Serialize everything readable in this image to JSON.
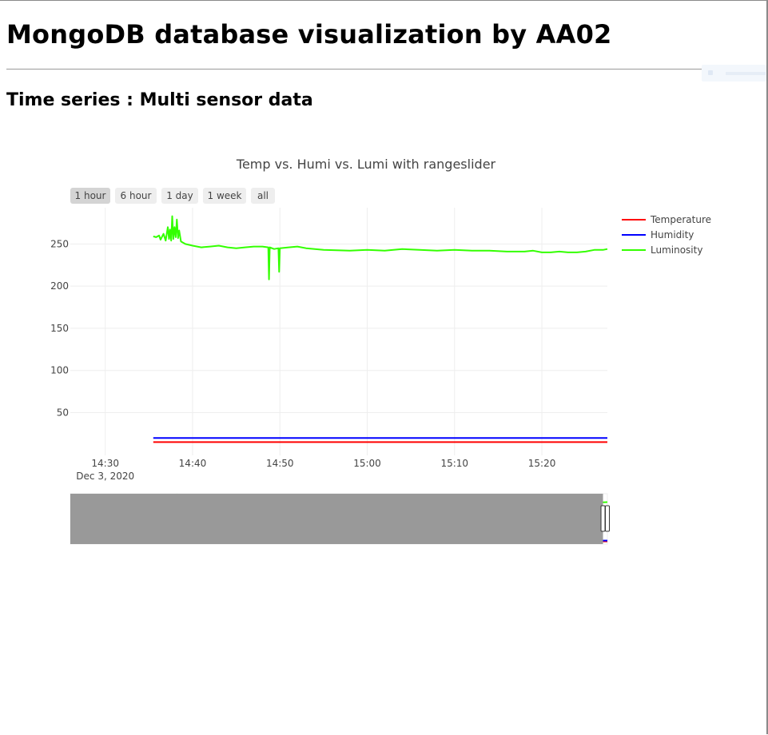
{
  "page": {
    "title": "MongoDB database visualization by AA02",
    "section_title": "Time series : Multi sensor data"
  },
  "range_selector": {
    "buttons": [
      "1 hour",
      "6 hour",
      "1 day",
      "1 week",
      "all"
    ],
    "active": "1 hour",
    "active_color": "#d4d4d4",
    "inactive_color": "#eeeeee"
  },
  "chart_data": {
    "type": "line",
    "title": "Temp vs. Humi vs. Lumi with rangeslider",
    "x_axis": {
      "type": "time",
      "range": [
        "2020-12-03T14:26:00",
        "2020-12-03T15:27:30"
      ],
      "ticks": [
        {
          "time": "2020-12-03T14:30:00",
          "label": "14:30",
          "sublabel": "Dec 3, 2020"
        },
        {
          "time": "2020-12-03T14:40:00",
          "label": "14:40",
          "sublabel": ""
        },
        {
          "time": "2020-12-03T14:50:00",
          "label": "14:50",
          "sublabel": ""
        },
        {
          "time": "2020-12-03T15:00:00",
          "label": "15:00",
          "sublabel": ""
        },
        {
          "time": "2020-12-03T15:10:00",
          "label": "15:10",
          "sublabel": ""
        },
        {
          "time": "2020-12-03T15:20:00",
          "label": "15:20",
          "sublabel": ""
        }
      ]
    },
    "y_axis": {
      "range": [
        -0.7,
        293
      ],
      "ticks": [
        50,
        100,
        150,
        200,
        250
      ]
    },
    "grid": true,
    "legend": "top-right",
    "series": [
      {
        "name": "Temperature",
        "color": "#ff0000",
        "points": [
          [
            "2020-12-03T14:35:30",
            15
          ],
          [
            "2020-12-03T15:27:30",
            15
          ]
        ]
      },
      {
        "name": "Humidity",
        "color": "#0000ff",
        "points": [
          [
            "2020-12-03T14:35:30",
            20
          ],
          [
            "2020-12-03T15:27:30",
            20
          ]
        ]
      },
      {
        "name": "Luminosity",
        "color": "#33ff00",
        "points": [
          [
            "2020-12-03T14:35:30",
            259
          ],
          [
            "2020-12-03T14:35:50",
            258
          ],
          [
            "2020-12-03T14:36:10",
            260
          ],
          [
            "2020-12-03T14:36:20",
            255
          ],
          [
            "2020-12-03T14:36:40",
            262
          ],
          [
            "2020-12-03T14:36:55",
            254
          ],
          [
            "2020-12-03T14:37:10",
            270
          ],
          [
            "2020-12-03T14:37:18",
            256
          ],
          [
            "2020-12-03T14:37:25",
            267
          ],
          [
            "2020-12-03T14:37:33",
            254
          ],
          [
            "2020-12-03T14:37:40",
            283
          ],
          [
            "2020-12-03T14:37:48",
            256
          ],
          [
            "2020-12-03T14:37:56",
            270
          ],
          [
            "2020-12-03T14:38:04",
            258
          ],
          [
            "2020-12-03T14:38:12",
            279
          ],
          [
            "2020-12-03T14:38:20",
            257
          ],
          [
            "2020-12-03T14:38:28",
            266
          ],
          [
            "2020-12-03T14:38:40",
            253
          ],
          [
            "2020-12-03T14:39:10",
            250
          ],
          [
            "2020-12-03T14:40:00",
            248
          ],
          [
            "2020-12-03T14:41:00",
            246
          ],
          [
            "2020-12-03T14:42:00",
            247
          ],
          [
            "2020-12-03T14:43:00",
            248
          ],
          [
            "2020-12-03T14:44:00",
            246
          ],
          [
            "2020-12-03T14:45:00",
            245
          ],
          [
            "2020-12-03T14:46:00",
            246
          ],
          [
            "2020-12-03T14:47:00",
            247
          ],
          [
            "2020-12-03T14:48:00",
            247
          ],
          [
            "2020-12-03T14:48:40",
            246
          ],
          [
            "2020-12-03T14:48:45",
            208
          ],
          [
            "2020-12-03T14:48:50",
            246
          ],
          [
            "2020-12-03T14:49:20",
            244
          ],
          [
            "2020-12-03T14:49:50",
            245
          ],
          [
            "2020-12-03T14:49:55",
            217
          ],
          [
            "2020-12-03T14:50:00",
            245
          ],
          [
            "2020-12-03T14:51:00",
            246
          ],
          [
            "2020-12-03T14:52:00",
            247
          ],
          [
            "2020-12-03T14:53:00",
            245
          ],
          [
            "2020-12-03T14:55:00",
            243
          ],
          [
            "2020-12-03T14:58:00",
            242
          ],
          [
            "2020-12-03T15:00:00",
            243
          ],
          [
            "2020-12-03T15:02:00",
            242
          ],
          [
            "2020-12-03T15:04:00",
            244
          ],
          [
            "2020-12-03T15:06:00",
            243
          ],
          [
            "2020-12-03T15:08:00",
            242
          ],
          [
            "2020-12-03T15:10:00",
            243
          ],
          [
            "2020-12-03T15:12:00",
            242
          ],
          [
            "2020-12-03T15:14:00",
            242
          ],
          [
            "2020-12-03T15:16:00",
            241
          ],
          [
            "2020-12-03T15:18:00",
            241
          ],
          [
            "2020-12-03T15:19:00",
            242
          ],
          [
            "2020-12-03T15:20:00",
            240
          ],
          [
            "2020-12-03T15:21:00",
            240
          ],
          [
            "2020-12-03T15:22:00",
            241
          ],
          [
            "2020-12-03T15:23:00",
            240
          ],
          [
            "2020-12-03T15:24:00",
            240
          ],
          [
            "2020-12-03T15:25:00",
            241
          ],
          [
            "2020-12-03T15:26:00",
            243
          ],
          [
            "2020-12-03T15:27:00",
            243
          ],
          [
            "2020-12-03T15:27:30",
            244
          ]
        ]
      }
    ]
  },
  "rangeslider": {
    "mask_color": "#999999",
    "visible_range": [
      "2020-12-03T15:27:00",
      "2020-12-03T15:27:30"
    ]
  }
}
